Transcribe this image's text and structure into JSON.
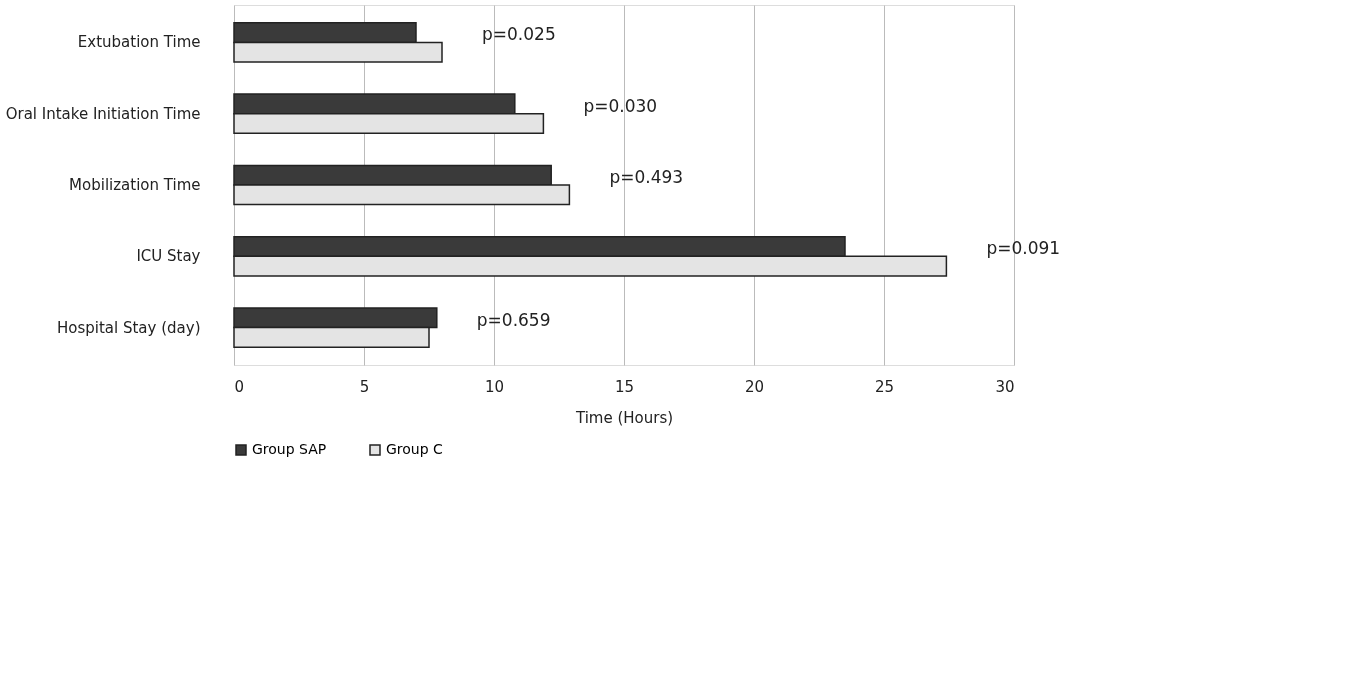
{
  "chart_data": {
    "type": "bar",
    "orientation": "horizontal",
    "xlabel": "Time (Hours)",
    "categories": [
      "Extubation Time",
      "Oral Intake Initiation Time",
      "Mobilization Time",
      "ICU Stay",
      "Hospital Stay (day)"
    ],
    "series": [
      {
        "name": "Group SAP",
        "color": "#3a3a3a",
        "values": [
          7.0,
          10.8,
          12.2,
          23.5,
          7.8
        ]
      },
      {
        "name": "Group C",
        "color": "#e4e4e4",
        "values": [
          8.0,
          11.9,
          12.9,
          27.4,
          7.5
        ]
      }
    ],
    "xlim": [
      0,
      30
    ],
    "xticks": [
      0,
      5,
      10,
      15,
      20,
      25,
      30
    ],
    "grid": "x",
    "legend": "bottom",
    "annotations": [
      "p=0.025",
      "p=0.030",
      "p=0.493",
      "p=0.091",
      "p=0.659"
    ]
  }
}
